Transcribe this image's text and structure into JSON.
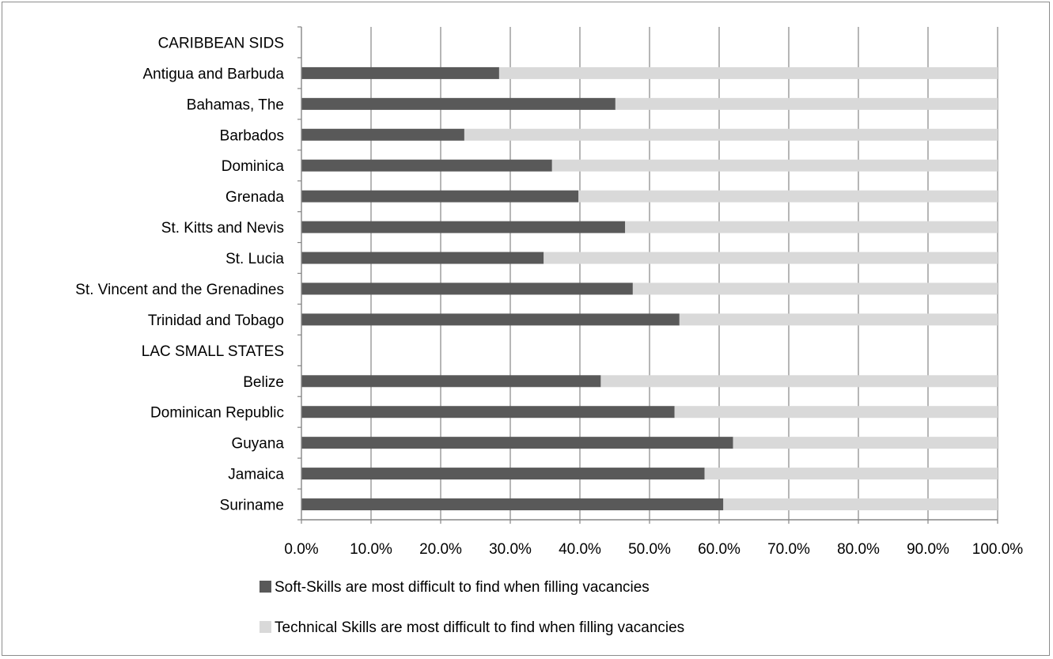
{
  "chart_data": {
    "type": "bar",
    "orientation": "horizontal",
    "stacked": true,
    "percent_stacked": true,
    "title": "",
    "xlabel": "",
    "ylabel": "",
    "xlim": [
      0,
      100
    ],
    "x_ticks": [
      "0.0%",
      "10.0%",
      "20.0%",
      "30.0%",
      "40.0%",
      "50.0%",
      "60.0%",
      "70.0%",
      "80.0%",
      "90.0%",
      "100.0%"
    ],
    "grid": "vertical",
    "legend_position": "bottom",
    "categories": [
      "CARIBBEAN SIDS",
      "Antigua and Barbuda",
      "Bahamas, The",
      "Barbados",
      "Dominica",
      "Grenada",
      "St. Kitts and Nevis",
      "St. Lucia",
      "St. Vincent and the Grenadines",
      "Trinidad and Tobago",
      "LAC SMALL STATES",
      "Belize",
      "Dominican Republic",
      "Guyana",
      "Jamaica",
      "Suriname"
    ],
    "series": [
      {
        "name": "Soft-Skills are most difficult to find when filling vacancies",
        "color": "#595959",
        "values": [
          null,
          28.4,
          45.1,
          23.4,
          36.0,
          39.8,
          46.5,
          34.8,
          47.6,
          54.3,
          null,
          43.0,
          53.6,
          62.0,
          57.9,
          60.6
        ]
      },
      {
        "name": "Technical Skills  are most difficult to find when filling vacancies",
        "color": "#d9d9d9",
        "values": [
          null,
          71.6,
          54.9,
          76.6,
          64.0,
          60.2,
          53.5,
          65.2,
          52.4,
          45.7,
          null,
          57.0,
          46.4,
          38.0,
          42.1,
          39.4
        ]
      }
    ],
    "colors": {
      "gridline": "#868686",
      "axis": "#868686",
      "frame": "#8c8c8c"
    }
  }
}
